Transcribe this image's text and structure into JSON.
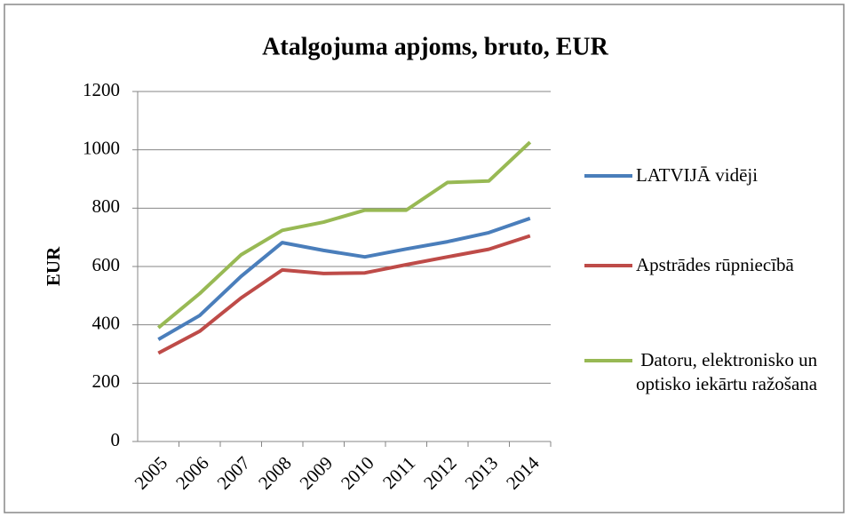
{
  "chart_data": {
    "type": "line",
    "title": "Atalgojuma apjoms, bruto, EUR",
    "y_label": "EUR",
    "categories": [
      "2005",
      "2006",
      "2007",
      "2008",
      "2009",
      "2010",
      "2011",
      "2012",
      "2013",
      "2014"
    ],
    "series": [
      {
        "name": "LATVIJĀ vidēji",
        "color": "#4a7ebb",
        "values": [
          350,
          432,
          566,
          682,
          655,
          633,
          660,
          685,
          716,
          765
        ]
      },
      {
        "name": "Apstrādes rūpniecībā",
        "color": "#be4b48",
        "values": [
          303,
          378,
          492,
          588,
          576,
          578,
          606,
          633,
          659,
          705
        ]
      },
      {
        "name": " Datoru, elektronisko un optisko iekārtu ražošana",
        "color": "#98b954",
        "values": [
          390,
          507,
          640,
          724,
          752,
          793,
          793,
          888,
          893,
          1026
        ]
      }
    ],
    "ylim": [
      0,
      1200
    ],
    "yticks": [
      0,
      200,
      400,
      600,
      800,
      1000,
      1200
    ],
    "grid": true,
    "legend": "right"
  }
}
